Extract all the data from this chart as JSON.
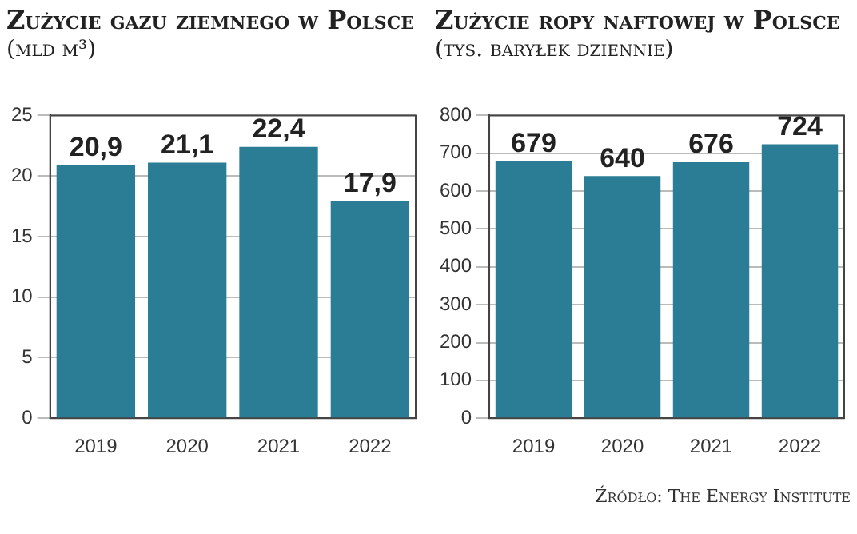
{
  "chart_data": [
    {
      "type": "bar",
      "title": "Zużycie gazu ziemnego w Polsce",
      "subtitle": "(mld m³)",
      "categories": [
        "2019",
        "2020",
        "2021",
        "2022"
      ],
      "values": [
        20.9,
        21.1,
        22.4,
        17.9
      ],
      "value_labels": [
        "20,9",
        "21,1",
        "22,4",
        "17,9"
      ],
      "color": "#2b7d95",
      "ylim": [
        0,
        25
      ],
      "yticks": [
        0,
        5,
        10,
        15,
        20,
        25
      ],
      "grid": "y"
    },
    {
      "type": "bar",
      "title": "Zużycie ropy naftowej w Polsce",
      "subtitle": "(tys. baryłek dziennie)",
      "categories": [
        "2019",
        "2020",
        "2021",
        "2022"
      ],
      "values": [
        679,
        640,
        676,
        724
      ],
      "data_labels": true,
      "color": "#2b7d95",
      "ylim": [
        0,
        800
      ],
      "yticks": [
        0,
        100,
        200,
        300,
        400,
        500,
        600,
        700,
        800
      ],
      "grid": "y",
      "annotations": [
        "Źródło: The Energy Institute"
      ]
    }
  ]
}
